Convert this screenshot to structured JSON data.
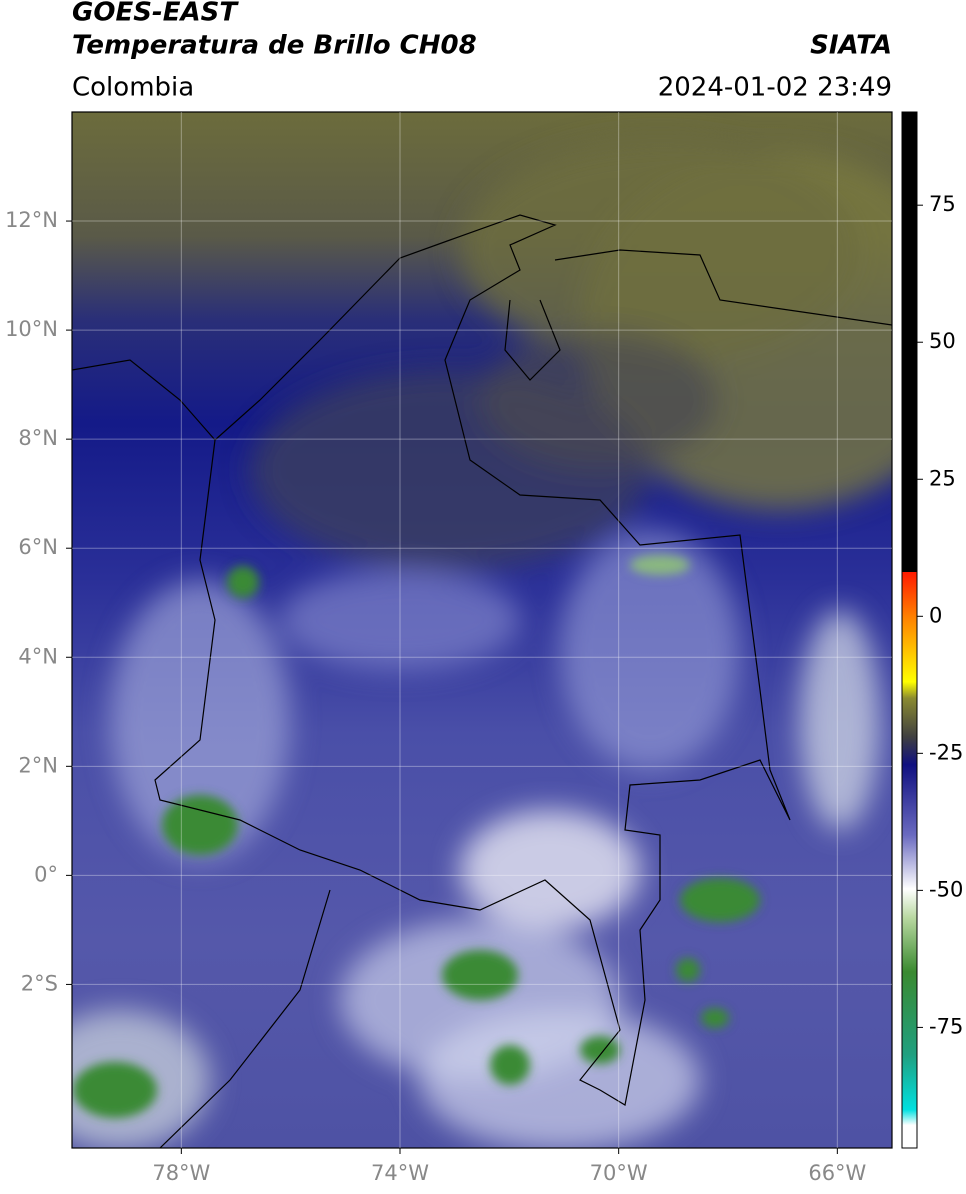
{
  "header": {
    "title": "GOES-EAST",
    "subtitle": "Temperatura de Brillo CH08",
    "source": "SIATA",
    "region": "Colombia",
    "timestamp": "2024-01-02 23:49"
  },
  "map": {
    "lonlim": [
      -80,
      -65
    ],
    "latlim": [
      -5,
      14
    ],
    "lon_ticks": [
      {
        "value": -78,
        "label": "78°W"
      },
      {
        "value": -74,
        "label": "74°W"
      },
      {
        "value": -70,
        "label": "70°W"
      },
      {
        "value": -66,
        "label": "66°W"
      }
    ],
    "lat_ticks": [
      {
        "value": 12,
        "label": "12°N"
      },
      {
        "value": 10,
        "label": "10°N"
      },
      {
        "value": 8,
        "label": "8°N"
      },
      {
        "value": 6,
        "label": "6°N"
      },
      {
        "value": 4,
        "label": "4°N"
      },
      {
        "value": 2,
        "label": "2°N"
      },
      {
        "value": 0,
        "label": "0°"
      },
      {
        "value": -2,
        "label": "2°S"
      }
    ]
  },
  "colorbar": {
    "lim": [
      -97,
      92
    ],
    "ticks": [
      75,
      50,
      25,
      0,
      -25,
      -50,
      -75
    ]
  }
}
